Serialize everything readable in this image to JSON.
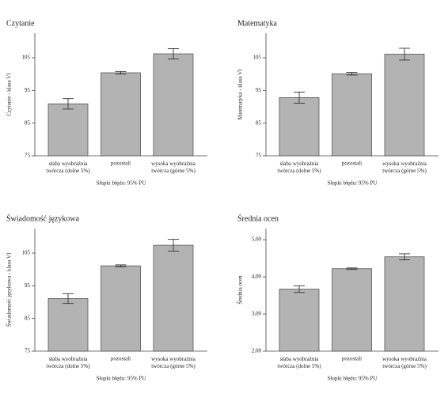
{
  "chart_data": [
    {
      "type": "bar",
      "title": "Czytanie",
      "y_label": "Czytanie - klasa VI",
      "note": "Słupki błędu: 95% PU",
      "categories": [
        "słaba wyobraźnia\ntwórcza (dolne 5%)",
        "pozostali",
        "wysoka wyobraźnia\ntwórcza (górne 5%)"
      ],
      "values": [
        90.9,
        100.4,
        106.2
      ],
      "errors": [
        1.6,
        0.4,
        1.6
      ],
      "color": "#b3b3b3",
      "ylim": [
        75,
        112.5
      ],
      "yticks": [
        75,
        85,
        95,
        105
      ]
    },
    {
      "type": "bar",
      "title": "Matematyka",
      "y_label": "Matematyka - klasa VI",
      "note": "Słupki błędu: 95% PU",
      "categories": [
        "słaba wyobraźnia\ntwórcza (dolne 5%)",
        "pozostali",
        "wysoka wyobraźnia\ntwórcza (górne 5%)"
      ],
      "values": [
        92.8,
        100.1,
        106.1
      ],
      "errors": [
        1.7,
        0.4,
        1.8
      ],
      "color": "#b3b3b3",
      "ylim": [
        75,
        112.5
      ],
      "yticks": [
        75,
        85,
        95,
        105
      ]
    },
    {
      "type": "bar",
      "title": "Świadomość językowa",
      "y_label": "Świadomość językowa - klasa VI",
      "note": "Słupki błędu: 95% PU",
      "categories": [
        "słaba wyobraźnia\ntwórcza (dolne 5%)",
        "pozostali",
        "wysoka wyobraźnia\ntwórcza (górne 5%)"
      ],
      "values": [
        91.1,
        101.1,
        107.4
      ],
      "errors": [
        1.5,
        0.3,
        1.8
      ],
      "color": "#b3b3b3",
      "ylim": [
        75,
        112.5
      ],
      "yticks": [
        75,
        85,
        95,
        105
      ]
    },
    {
      "type": "bar",
      "title": "Średnia ocen",
      "y_label": "Średnia ocen",
      "note": "Słupki błędu: 95% PU",
      "categories": [
        "słaba wyobraźnia\ntwórcza (dolne 5%)",
        "pozostali",
        "wysoka wyobraźnia\ntwórcza (górne 5%)"
      ],
      "values": [
        3.67,
        4.22,
        4.54
      ],
      "errors": [
        0.09,
        0.02,
        0.08
      ],
      "color": "#b3b3b3",
      "ylim": [
        2,
        5.3
      ],
      "yticks": [
        {
          "value": 2,
          "label": "2,00"
        },
        {
          "value": 3,
          "label": "3,00"
        },
        {
          "value": 4,
          "label": "4,00"
        },
        {
          "value": 5,
          "label": "5,00"
        }
      ]
    }
  ]
}
